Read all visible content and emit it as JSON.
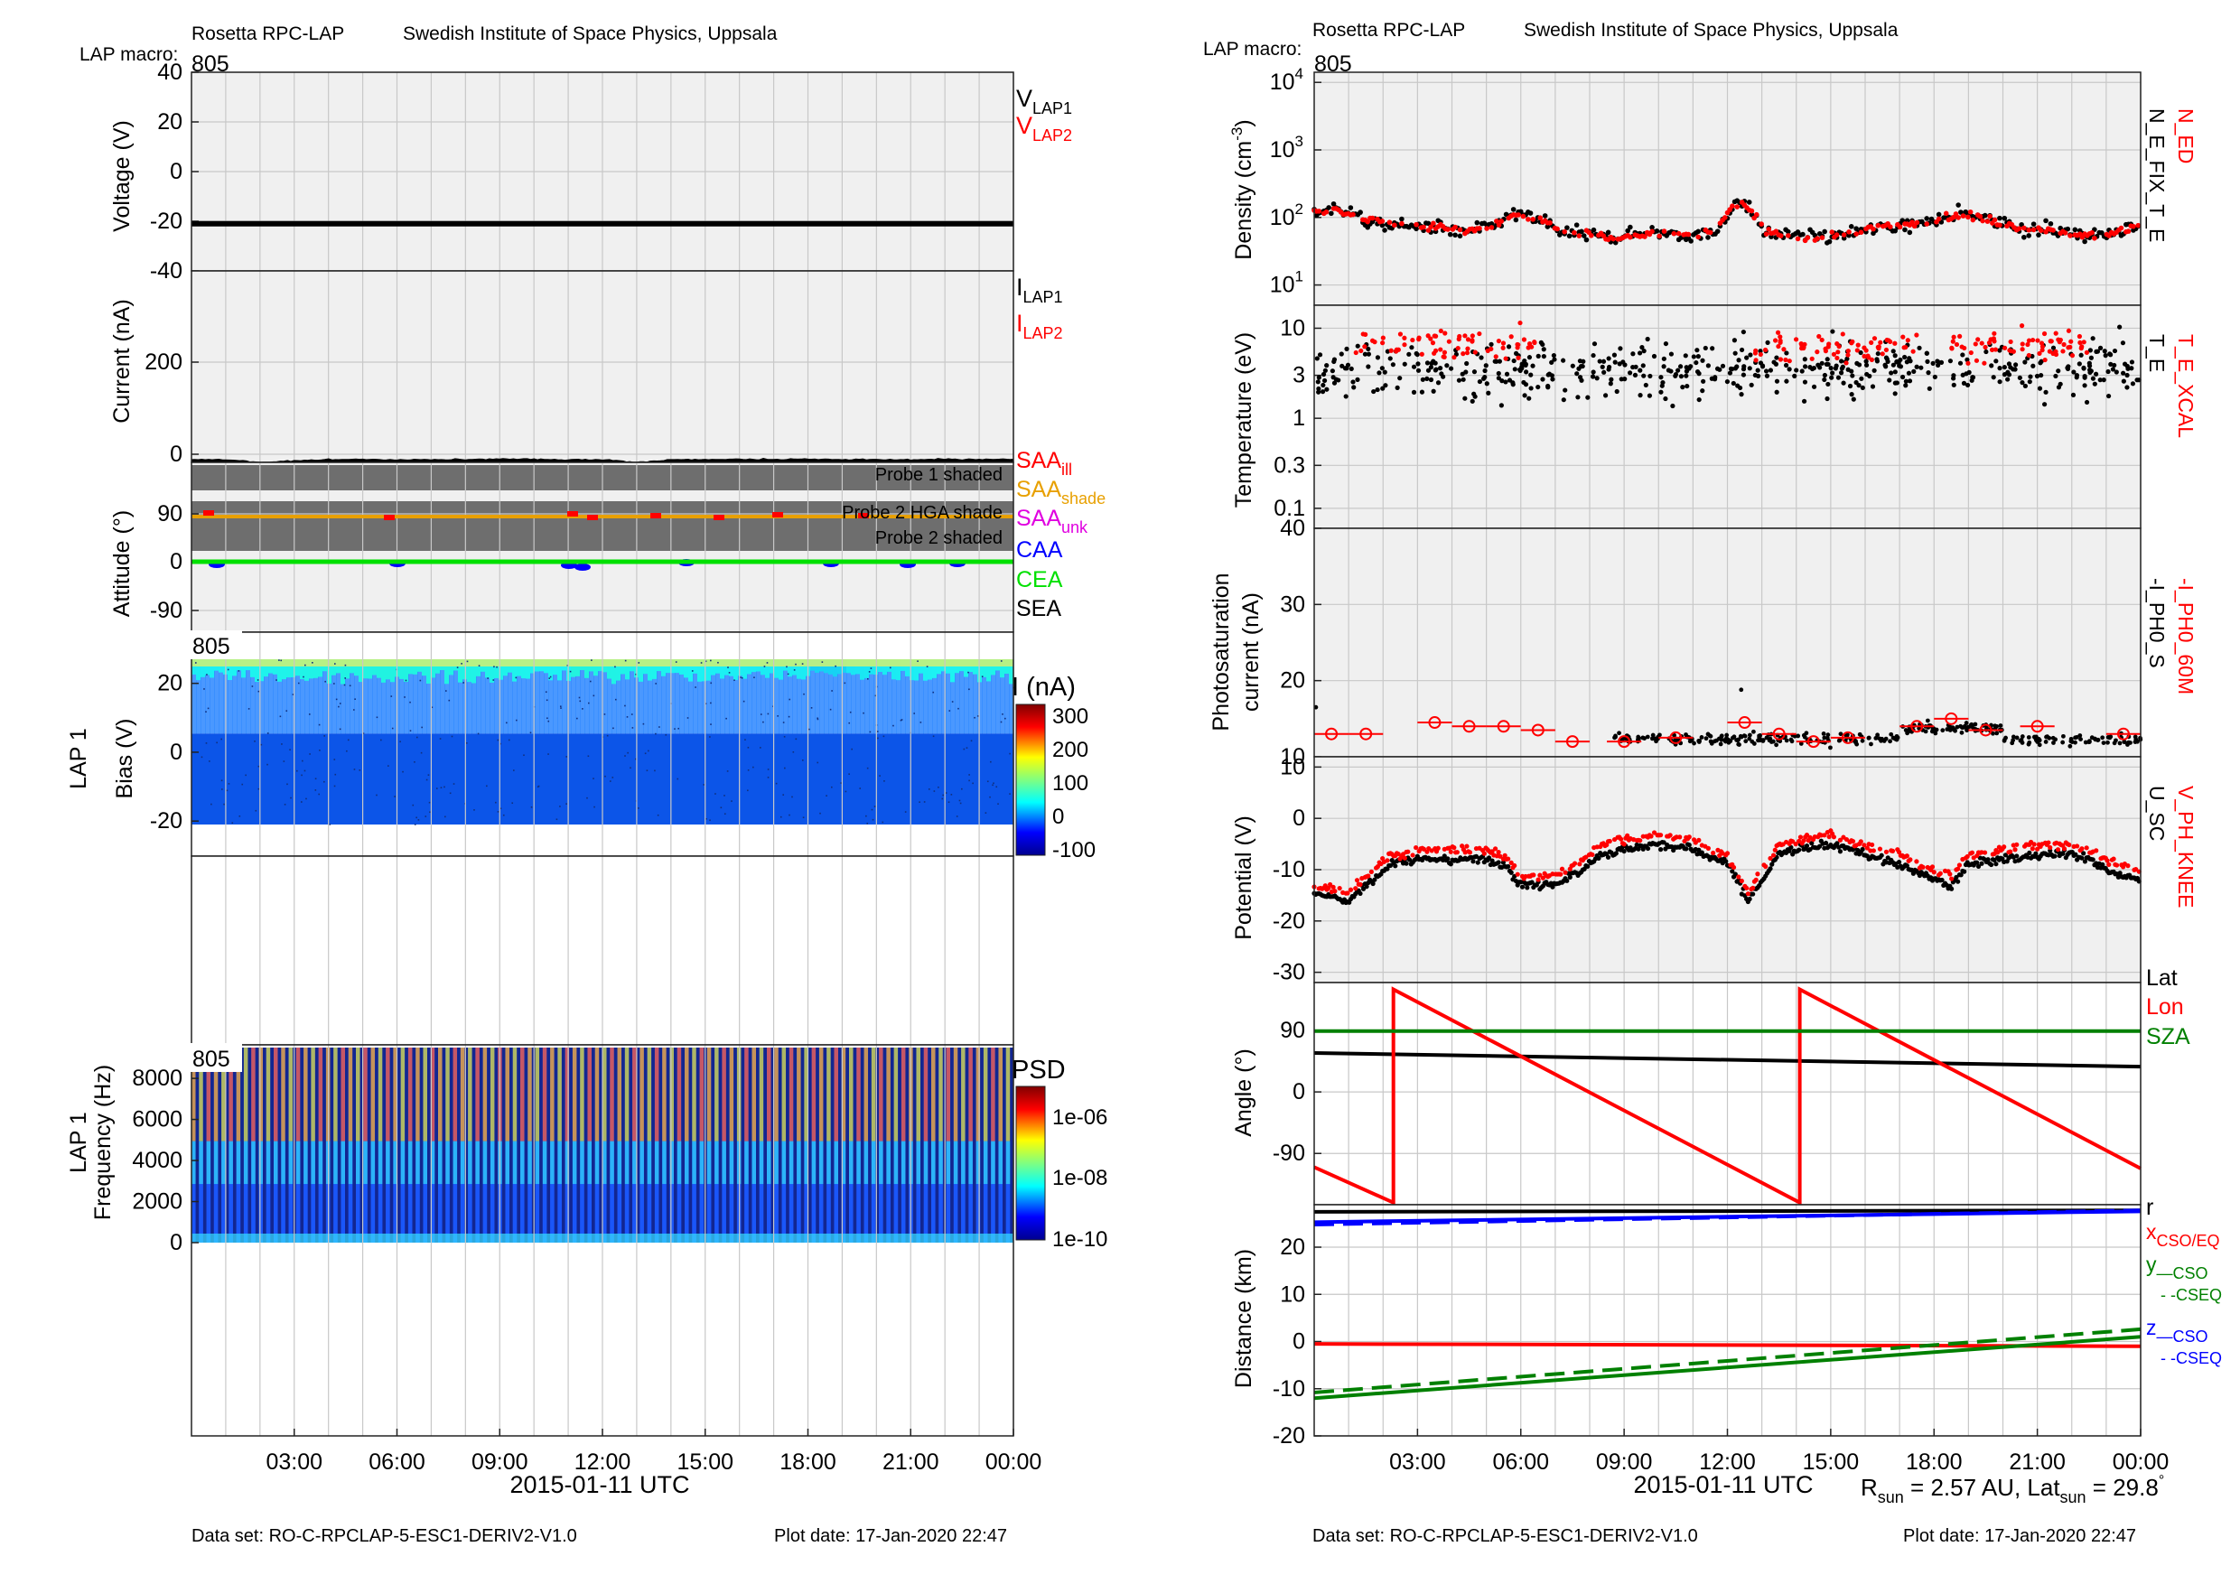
{
  "header": {
    "title": "Rosetta RPC-LAP",
    "institute": "Swedish Institute of Space Physics, Uppsala",
    "macro_label": "LAP macro:",
    "macro_value": "805"
  },
  "footer": {
    "dataset": "Data set: RO-C-RPCLAP-5-ESC1-DERIV2-V1.0",
    "plot_date": "Plot date: 17-Jan-2020 22:47",
    "xlabel": "2015-01-11 UTC",
    "rsun_prefix": "R",
    "rsun_sub": "sun",
    "rsun_mid": " = 2.57 AU, Lat",
    "lat_sub": "sun",
    "lat_val": " = 29.8",
    "deg": "°"
  },
  "x_ticks": [
    "03:00",
    "06:00",
    "09:00",
    "12:00",
    "15:00",
    "18:00",
    "21:00",
    "00:00"
  ],
  "colors": {
    "black": "#000000",
    "red": "#ff0000",
    "orange": "#e8a000",
    "magenta": "#e000e0",
    "blue": "#0000ff",
    "green": "#00e000",
    "darkgreen": "#008000",
    "shade": "#6e6e6e",
    "panel_bg": "#f0f0f0",
    "grid": "#c8c8c8"
  },
  "left": {
    "voltage": {
      "ylabel": "Voltage (V)",
      "ticks": [
        "40",
        "20",
        "0",
        "-20",
        "-40"
      ],
      "legend": [
        {
          "text": "V",
          "sub": "LAP1",
          "color": "#000000"
        },
        {
          "text": "V",
          "sub": "LAP2",
          "color": "#ff0000"
        }
      ]
    },
    "current": {
      "ylabel": "Current (nA)",
      "ticks": [
        "200",
        "0"
      ],
      "legend": [
        {
          "text": "I",
          "sub": "LAP1",
          "color": "#000000"
        },
        {
          "text": "I",
          "sub": "LAP2",
          "color": "#ff0000"
        }
      ]
    },
    "attitude": {
      "ylabel": "Attitude (°)",
      "ticks": [
        "90",
        "0",
        "-90"
      ],
      "shade_labels": [
        "Probe 1 shaded",
        "Probe 2 HGA shade",
        "Probe 2 shaded"
      ],
      "legend": [
        {
          "text": "SAA",
          "sub": "ill",
          "color": "#ff0000"
        },
        {
          "text": "SAA",
          "sub": "shade",
          "color": "#e8a000"
        },
        {
          "text": "SAA",
          "sub": "unk",
          "color": "#e000e0"
        },
        {
          "text": "CAA",
          "sub": "",
          "color": "#0000ff"
        },
        {
          "text": "CEA",
          "sub": "",
          "color": "#00e000"
        },
        {
          "text": "SEA",
          "sub": "",
          "color": "#000000"
        }
      ]
    },
    "sweep": {
      "ylabel1": "LAP 1",
      "ylabel2": "Bias (V)",
      "ticks": [
        "20",
        "0",
        "-20"
      ],
      "tag": "805",
      "colorbar_title": "I (nA)",
      "colorbar_ticks": [
        "300",
        "200",
        "100",
        "0",
        "-100"
      ]
    },
    "spectrum": {
      "ylabel1": "LAP 1",
      "ylabel2": "Frequency (Hz)",
      "ticks": [
        "8000",
        "6000",
        "4000",
        "2000",
        "0"
      ],
      "tag": "805",
      "colorbar_title": "PSD",
      "colorbar_ticks": [
        "1e-06",
        "1e-08",
        "1e-10"
      ]
    }
  },
  "right": {
    "density": {
      "ylabel": "Density (cm",
      "ylabel_sup": "-3",
      "ylabel_end": ")",
      "ticks": [
        {
          "b": "10",
          "e": "4"
        },
        {
          "b": "10",
          "e": "3"
        },
        {
          "b": "10",
          "e": "2"
        },
        {
          "b": "10",
          "e": "1"
        }
      ],
      "legend_red": "N_ED",
      "legend_black": "N_E_FIX_T_E"
    },
    "temperature": {
      "ylabel": "Temperature (eV)",
      "ticks": [
        "10",
        "3",
        "1",
        "0.3",
        "0.1"
      ],
      "legend_red": "T_E_XCAL",
      "legend_black": "T_E"
    },
    "photosat": {
      "ylabel1": "Photosaturation",
      "ylabel2": "current (nA)",
      "ticks": [
        "40",
        "30",
        "20",
        "10"
      ],
      "legend_red": "-I_PH0_60M",
      "legend_black": "-I_PH0_S"
    },
    "potential": {
      "ylabel": "Potential (V)",
      "ticks": [
        "10",
        "0",
        "-10",
        "-20",
        "-30"
      ],
      "legend_red": "V_PH_KNEE",
      "legend_black": "U_SC"
    },
    "angle": {
      "ylabel": "Angle (°)",
      "ticks": [
        "90",
        "0",
        "-90"
      ],
      "legend": [
        {
          "text": "Lat",
          "color": "#000000"
        },
        {
          "text": "Lon",
          "color": "#ff0000"
        },
        {
          "text": "SZA",
          "color": "#008000"
        }
      ]
    },
    "distance": {
      "ylabel": "Distance (km)",
      "ticks": [
        "20",
        "10",
        "0",
        "-10",
        "-20"
      ],
      "legend_r": "r",
      "legend_x": "x",
      "legend_x_sub": "CSO/EQ",
      "legend_y": "y",
      "legend_y_sub1": "—CSO",
      "legend_y_sub2": "- -CSEQ",
      "legend_z": "z",
      "legend_z_sub1": "—CSO",
      "legend_z_sub2": "- -CSEQ"
    }
  },
  "chart_data": [
    {
      "type": "line",
      "title": "Voltage (V)",
      "ylim": [
        -40,
        40
      ],
      "series": [
        {
          "name": "V_LAP1",
          "values": [
            -21,
            -21,
            -21,
            -21,
            -21,
            -21,
            -21,
            -21,
            -21,
            -21,
            -21,
            -21,
            -21
          ]
        }
      ],
      "x": [
        "00:00",
        "02:00",
        "04:00",
        "06:00",
        "08:00",
        "10:00",
        "12:00",
        "14:00",
        "16:00",
        "18:00",
        "20:00",
        "22:00",
        "00:00"
      ]
    },
    {
      "type": "line",
      "title": "Current (nA)",
      "series": [
        {
          "name": "I_LAP1",
          "values": [
            -12,
            -18,
            -10,
            -8,
            -9,
            -10,
            -8,
            -9,
            -20,
            -9,
            -8,
            -9,
            -10,
            -9,
            -9,
            -10,
            -11,
            -10,
            -10,
            -10,
            -9,
            -9,
            -10,
            -10,
            -10
          ]
        }
      ]
    },
    {
      "type": "heatmap",
      "title": "LAP 1 Bias (V)",
      "ylim": [
        -20,
        27
      ],
      "colorbar": [
        -100,
        300
      ]
    },
    {
      "type": "heatmap",
      "title": "LAP 1 Frequency (Hz)",
      "ylim": [
        0,
        9500
      ],
      "colorbar": [
        "1e-10",
        "1e-06"
      ]
    },
    {
      "type": "scatter",
      "title": "Density (cm-3)",
      "yscale": "log",
      "ylim": [
        5,
        10000
      ],
      "series": [
        {
          "name": "N_ED",
          "values": [
            120,
            130,
            90,
            80,
            75,
            70,
            60,
            70,
            110,
            90,
            60,
            55,
            50,
            55,
            60,
            55,
            60,
            170,
            60,
            55,
            50,
            55,
            65,
            75,
            80,
            100,
            110,
            90,
            70,
            65,
            60,
            55,
            60,
            80
          ]
        },
        {
          "name": "N_E_FIX_T_E"
        }
      ]
    },
    {
      "type": "scatter",
      "title": "Temperature (eV)",
      "yscale": "log",
      "ylim": [
        0.06,
        15
      ]
    },
    {
      "type": "scatter",
      "title": "Photosaturation current (nA)",
      "ylim": [
        10,
        40
      ],
      "series": [
        {
          "name": "-I_PH0_60M",
          "values": [
            13,
            13,
            14.5,
            14,
            14,
            13.5,
            12,
            12,
            12.5,
            14.5,
            13,
            12,
            12.5,
            14,
            15,
            13.5,
            14,
            13
          ]
        },
        {
          "name": "-I_PH0_S"
        }
      ]
    },
    {
      "type": "scatter",
      "title": "Potential (V)",
      "ylim": [
        -32,
        12
      ],
      "series": [
        {
          "name": "V_PH_KNEE"
        },
        {
          "name": "U_SC"
        }
      ]
    },
    {
      "type": "line",
      "title": "Angle (°)",
      "ylim": [
        -150,
        160
      ],
      "series": [
        {
          "name": "Lat",
          "x": [
            0,
            24
          ],
          "values": [
            57,
            37
          ]
        },
        {
          "name": "Lon",
          "x": [
            0,
            2.3,
            2.3,
            14.1,
            14.1,
            24
          ],
          "values": [
            -110,
            -162,
            150,
            -162,
            150,
            -112
          ]
        },
        {
          "name": "SZA",
          "x": [
            0,
            24
          ],
          "values": [
            89,
            89
          ]
        }
      ]
    },
    {
      "type": "line",
      "title": "Distance (km)",
      "ylim": [
        -20,
        28
      ],
      "series": [
        {
          "name": "r",
          "x": [
            0,
            24
          ],
          "values": [
            26.5,
            27.5
          ]
        },
        {
          "name": "x CSO/EQ",
          "x": [
            0,
            24
          ],
          "values": [
            -0.5,
            -1
          ]
        },
        {
          "name": "y CSO",
          "x": [
            0,
            24
          ],
          "values": [
            -12,
            1
          ]
        },
        {
          "name": "y CSEQ",
          "x": [
            0,
            24
          ],
          "values": [
            -11,
            2.5
          ]
        }
      ]
    }
  ]
}
